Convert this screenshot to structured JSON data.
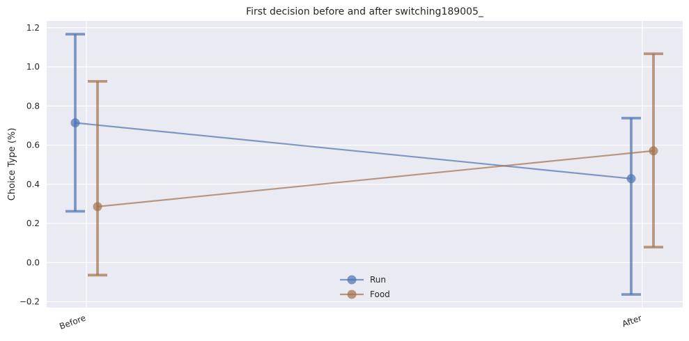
{
  "chart_data": {
    "type": "line",
    "title": "First decision before and after switching189005_",
    "xlabel": "",
    "ylabel": "Choice Type (%)",
    "categories": [
      "Before",
      "After"
    ],
    "ylim": [
      -0.23,
      1.235
    ],
    "yticks": [
      -0.2,
      0.0,
      0.2,
      0.4,
      0.6,
      0.8,
      1.0,
      1.2
    ],
    "ytick_labels": [
      "−0.2",
      "0.0",
      "0.2",
      "0.4",
      "0.6",
      "0.8",
      "1.0",
      "1.2"
    ],
    "grid": true,
    "legend_position": "bottom-center",
    "series": [
      {
        "name": "Run",
        "color": "#4c72b0",
        "values": [
          0.714,
          0.429
        ],
        "err_low": [
          0.262,
          -0.163
        ],
        "err_high": [
          1.167,
          0.738
        ]
      },
      {
        "name": "Food",
        "color": "#a3704a",
        "values": [
          0.286,
          0.571
        ],
        "err_low": [
          -0.064,
          0.079
        ],
        "err_high": [
          0.926,
          1.067
        ]
      }
    ]
  }
}
